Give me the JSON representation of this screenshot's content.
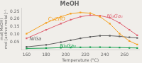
{
  "chart_data": {
    "type": "line",
    "title": "MeOH",
    "xlabel": "Temperature (°C)",
    "ylabel": "mol(MeOH)\nmol [active metal]⁻¹",
    "xlim": [
      155,
      275
    ],
    "ylim": [
      0,
      0.27
    ],
    "xticks": [
      160,
      180,
      200,
      220,
      240,
      260
    ],
    "yticks": [
      {
        "value": 0.05,
        "label": "0.05"
      },
      {
        "value": 0.1,
        "label": "0.10"
      },
      {
        "value": 0.15,
        "label": "0.15"
      },
      {
        "value": 0.2,
        "label": "0.20"
      },
      {
        "value": 0.25,
        "label": "0.25"
      }
    ],
    "grid": false,
    "marker": "square",
    "background_color": "#f0eeea",
    "x": [
      160,
      180,
      195,
      205,
      215,
      225,
      235,
      245,
      255,
      265,
      273
    ],
    "series": [
      {
        "name": "CuZnO",
        "color": "#f5a020",
        "values": [
          0.105,
          0.175,
          0.215,
          0.235,
          0.242,
          0.238,
          0.215,
          0.17,
          0.105,
          0.058,
          0.035
        ]
      },
      {
        "name": "Ni₃Ga₁",
        "color": "#e06070",
        "values": [
          0.075,
          0.13,
          0.17,
          0.195,
          0.215,
          0.225,
          0.222,
          0.208,
          0.175,
          0.13,
          0.095
        ]
      },
      {
        "name": "NiGa",
        "color": "#606060",
        "values": [
          0.02,
          0.033,
          0.05,
          0.063,
          0.075,
          0.085,
          0.092,
          0.092,
          0.088,
          0.082,
          0.078
        ]
      },
      {
        "name": "Ni₅Ga₃",
        "color": "#18a050",
        "values": [
          0.01,
          0.012,
          0.015,
          0.016,
          0.017,
          0.018,
          0.018,
          0.017,
          0.016,
          0.014,
          0.013
        ]
      }
    ],
    "annotations": [
      {
        "text": "CuZnO",
        "x": 182,
        "y": 0.2
      },
      {
        "text": "Ni₃Ga₁",
        "x": 242,
        "y": 0.218
      },
      {
        "text": "NiGa",
        "x": 163,
        "y": 0.072
      },
      {
        "text": "Ni₅Ga₃",
        "x": 194,
        "y": 0.027
      }
    ]
  }
}
